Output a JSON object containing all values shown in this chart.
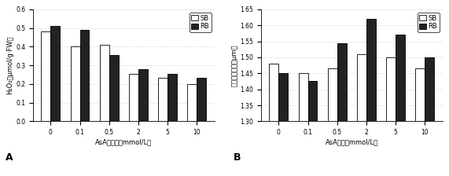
{
  "chart_A": {
    "categories": [
      "0",
      "0.1",
      "0.5",
      "2",
      "5",
      "10"
    ],
    "SB": [
      0.48,
      0.4,
      0.41,
      0.255,
      0.235,
      0.2
    ],
    "RB": [
      0.51,
      0.49,
      0.355,
      0.28,
      0.255,
      0.235
    ],
    "ylabel": "H₂O₂（μmol/g·FW）",
    "xlabel": "AsA的浓度（mmol/L）",
    "ylim": [
      0,
      0.6
    ],
    "yticks": [
      0,
      0.1,
      0.2,
      0.3,
      0.4,
      0.5,
      0.6
    ],
    "label": "A"
  },
  "chart_B": {
    "categories": [
      "0",
      "0.1",
      "0.5",
      "2",
      "5",
      "10"
    ],
    "SB": [
      1.48,
      1.45,
      1.465,
      1.51,
      1.5,
      1.465
    ],
    "RB": [
      1.45,
      1.425,
      1.545,
      1.62,
      1.57,
      1.5
    ],
    "ylabel": "叶片气孔开度（μm）",
    "xlabel": "AsA浓度（mmol/L）",
    "ylim": [
      1.3,
      1.65
    ],
    "yticks": [
      1.3,
      1.35,
      1.4,
      1.45,
      1.5,
      1.55,
      1.6,
      1.65
    ],
    "label": "B"
  },
  "bar_width": 0.32,
  "sb_color": "white",
  "rb_color": "#222222",
  "edge_color": "black",
  "grid_color": "#bbbbbb",
  "background_color": "white"
}
